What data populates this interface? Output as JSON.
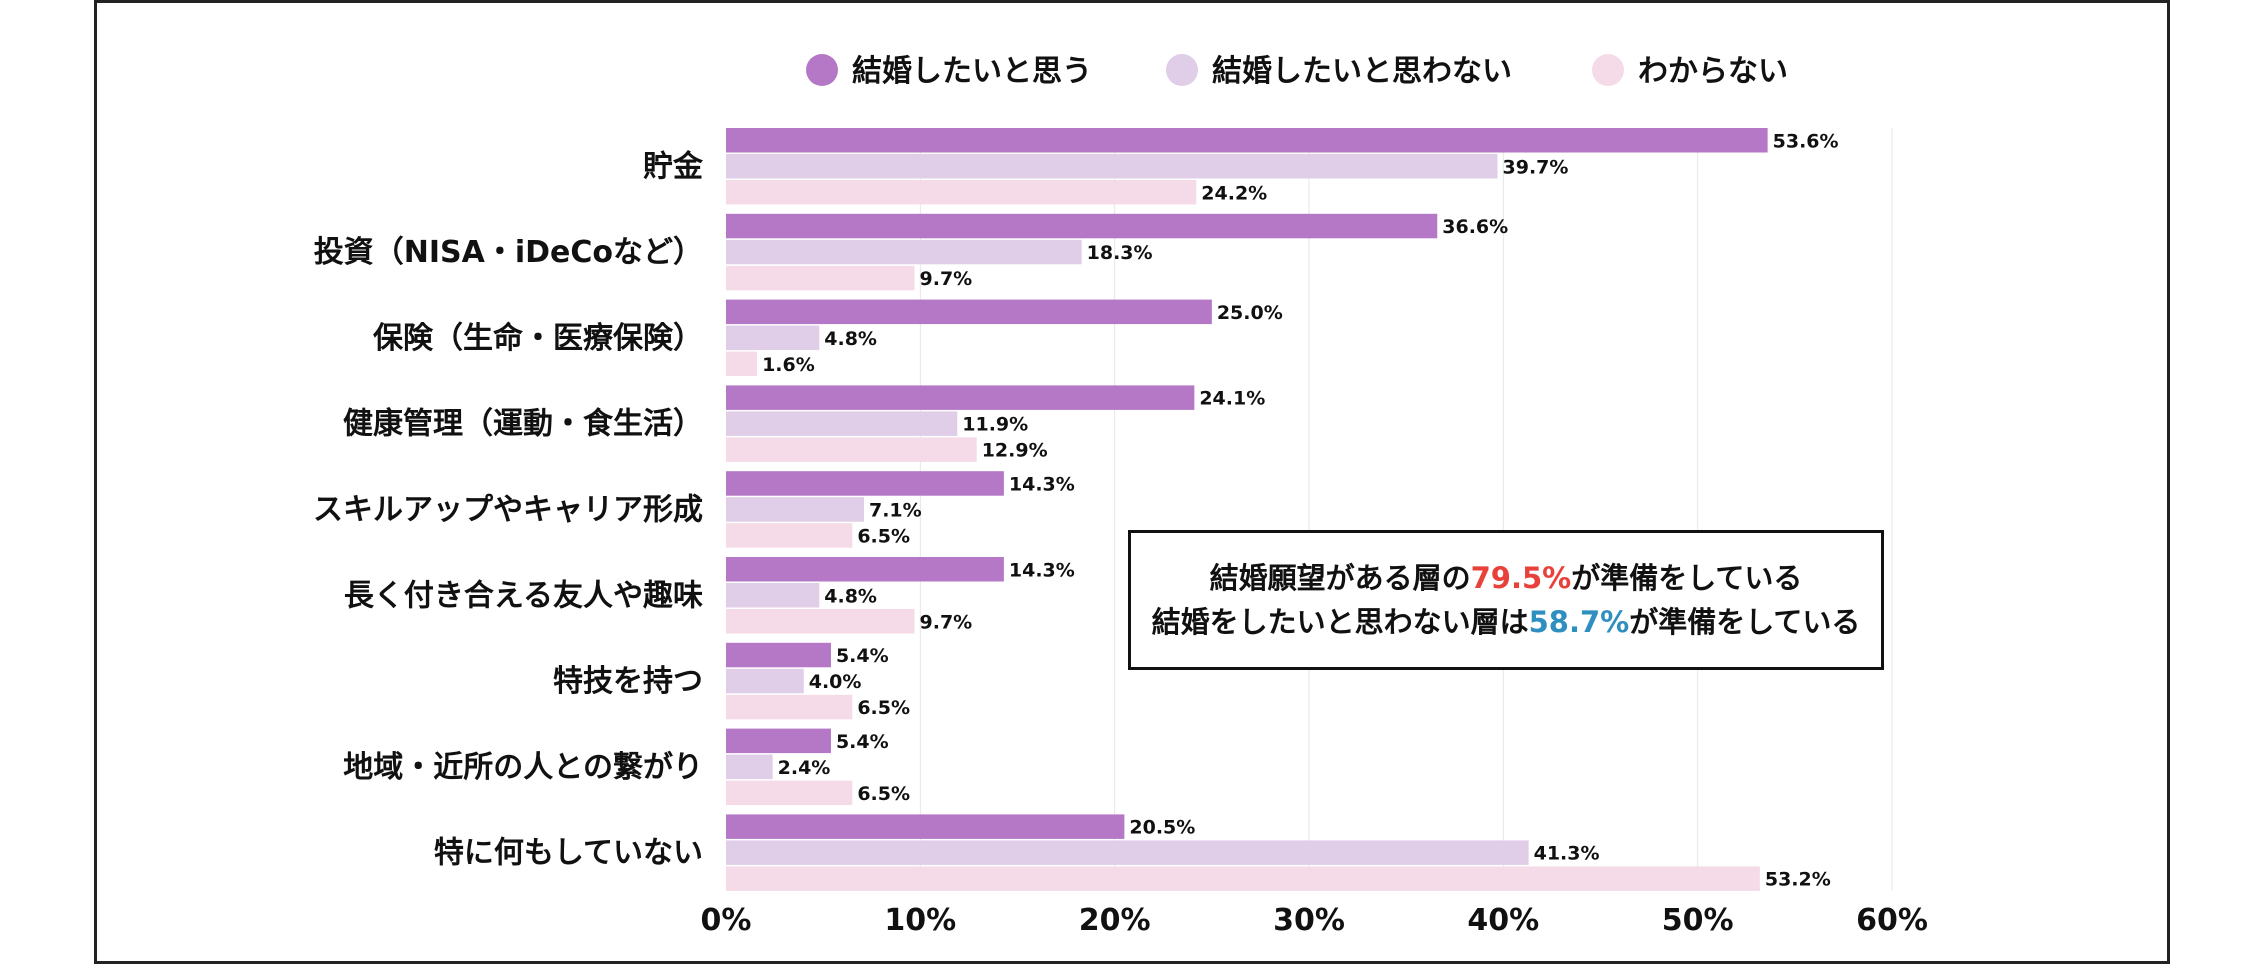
{
  "colors": {
    "series_1": "#b478c6",
    "series_2": "#e0cde8",
    "series_3": "#f4dbe7",
    "callout_red": "#e8413a",
    "callout_blue": "#2f8fc0"
  },
  "chart_data": {
    "type": "bar",
    "orientation": "horizontal",
    "title": "",
    "xlabel": "",
    "ylabel": "",
    "xlim": [
      0,
      60
    ],
    "x_ticks": [
      "0%",
      "10%",
      "20%",
      "30%",
      "40%",
      "50%",
      "60%"
    ],
    "grid": true,
    "legend_position": "top",
    "categories": [
      "貯金",
      "投資（NISA・iDeCoなど）",
      "保険（生命・医療保険）",
      "健康管理（運動・食生活）",
      "スキルアップやキャリア形成",
      "長く付き合える友人や趣味",
      "特技を持つ",
      "地域・近所の人との繋がり",
      "特に何もしていない"
    ],
    "series": [
      {
        "name": "結婚したいと思う",
        "values": [
          53.6,
          36.6,
          25.0,
          24.1,
          14.3,
          14.3,
          5.4,
          5.4,
          20.5
        ]
      },
      {
        "name": "結婚したいと思わない",
        "values": [
          39.7,
          18.3,
          4.8,
          11.9,
          7.1,
          4.8,
          4.0,
          2.4,
          41.3
        ]
      },
      {
        "name": "わからない",
        "values": [
          24.2,
          9.7,
          1.6,
          12.9,
          6.5,
          9.7,
          6.5,
          6.5,
          53.2
        ]
      }
    ],
    "annotation": {
      "line1_pre": "結婚願望がある層の",
      "line1_value": "79.5%",
      "line1_post": "が準備をしている",
      "line2_pre": "結婚をしたいと思わない層は",
      "line2_value": "58.7%",
      "line2_post": "が準備をしている"
    }
  }
}
